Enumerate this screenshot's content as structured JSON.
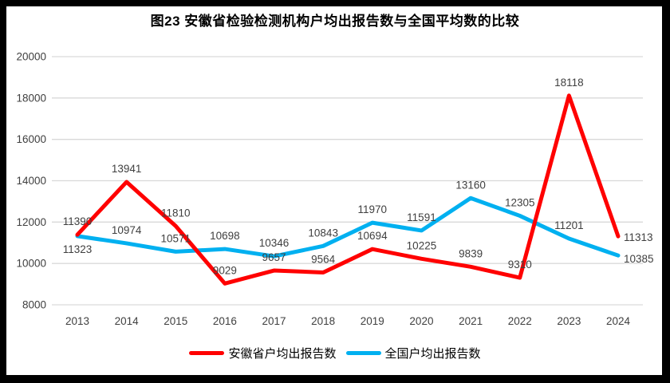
{
  "chart_data": {
    "type": "line",
    "title": "图23 安徽省检验检测机构户均出报告数与全国平均数的比较",
    "categories": [
      "2013",
      "2014",
      "2015",
      "2016",
      "2017",
      "2018",
      "2019",
      "2020",
      "2021",
      "2022",
      "2023",
      "2024"
    ],
    "series": [
      {
        "name": "安徽省户均出报告数",
        "color": "#FF0000",
        "values": [
          11390,
          13941,
          11810,
          9029,
          9657,
          9564,
          10694,
          10225,
          9839,
          9310,
          18118,
          11313
        ]
      },
      {
        "name": "全国户均出报告数",
        "color": "#00B0F0",
        "values": [
          11323,
          10974,
          10571,
          10698,
          10346,
          10843,
          11970,
          11591,
          13160,
          12305,
          11201,
          10385
        ]
      }
    ],
    "ylim": [
      8000,
      20000
    ],
    "yticks": [
      8000,
      10000,
      12000,
      14000,
      16000,
      18000,
      20000
    ],
    "grid": true,
    "data_labels": true,
    "legend_position": "bottom",
    "label_overrides": {
      "0": {
        "11": {
          "placement": "right",
          "dy": 6
        }
      },
      "1": {
        "0": {
          "placement": "below",
          "dy": 21
        },
        "11": {
          "placement": "right",
          "dy": 9
        }
      }
    },
    "colors": {
      "grid": "#D9D9D9",
      "tick_text": "#404040",
      "label_text": "#3F3F3F",
      "title_text": "#000000",
      "frame_border": "#000000"
    }
  }
}
